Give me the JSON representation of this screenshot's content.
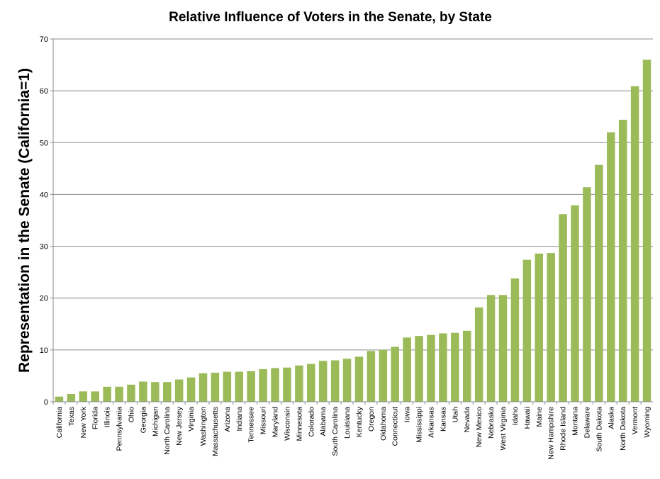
{
  "chart_data": {
    "type": "bar",
    "title": "Relative Influence of Voters in the Senate, by State",
    "xlabel": "",
    "ylabel": "Representation in the Senate (California=1)",
    "ylim": [
      0,
      70
    ],
    "yticks": [
      0,
      10,
      20,
      30,
      40,
      50,
      60,
      70
    ],
    "grid": true,
    "bar_color": "#9bbb59",
    "categories": [
      "California",
      "Texas",
      "New York",
      "Florida",
      "Illinois",
      "Pennsylvania",
      "Ohio",
      "Georgia",
      "Michigan",
      "North Carolina",
      "New Jersey",
      "Virginia",
      "Washington",
      "Massachusetts",
      "Arizona",
      "Indiana",
      "Tennessee",
      "Missouri",
      "Maryland",
      "Wisconsin",
      "Minnesota",
      "Colorado",
      "Alabama",
      "South Carolina",
      "Louisiana",
      "Kentucky",
      "Oregon",
      "Oklahoma",
      "Connecticut",
      "Iowa",
      "Mississippi",
      "Arkansas",
      "Kansas",
      "Utah",
      "Nevada",
      "New Mexico",
      "Nebraska",
      "West Virginia",
      "Idaho",
      "Hawaii",
      "Maine",
      "New Hampshire",
      "Rhode Island",
      "Montana",
      "Delaware",
      "South Dakota",
      "Alaska",
      "North Dakota",
      "Vermont",
      "Wyoming"
    ],
    "values": [
      1.0,
      1.5,
      2.0,
      2.0,
      2.9,
      2.9,
      3.3,
      3.9,
      3.8,
      3.8,
      4.3,
      4.7,
      5.5,
      5.6,
      5.8,
      5.8,
      5.9,
      6.3,
      6.5,
      6.6,
      7.0,
      7.3,
      7.9,
      8.0,
      8.3,
      8.7,
      9.8,
      10.0,
      10.6,
      12.4,
      12.7,
      12.9,
      13.2,
      13.3,
      13.7,
      18.2,
      20.6,
      20.6,
      23.8,
      27.4,
      28.6,
      28.7,
      36.2,
      37.9,
      41.4,
      45.7,
      52.0,
      54.4,
      60.9,
      66.0
    ]
  }
}
